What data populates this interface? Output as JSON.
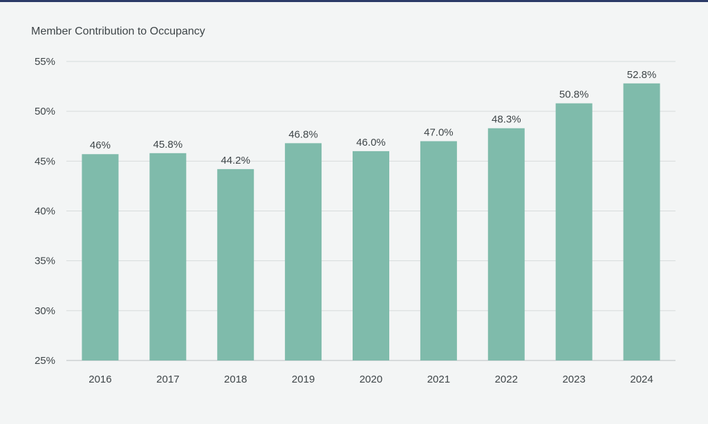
{
  "chart_data": {
    "type": "bar",
    "title": "Member Contribution to Occupancy",
    "xlabel": "",
    "ylabel": "",
    "categories": [
      "2016",
      "2017",
      "2018",
      "2019",
      "2020",
      "2021",
      "2022",
      "2023",
      "2024"
    ],
    "values": [
      45.7,
      45.8,
      44.2,
      46.8,
      46.0,
      47.0,
      48.3,
      50.8,
      52.8
    ],
    "data_labels": [
      "46%",
      "45.8%",
      "44.2%",
      "46.8%",
      "46.0%",
      "47.0%",
      "48.3%",
      "50.8%",
      "52.8%"
    ],
    "ylim": [
      25,
      55
    ],
    "yticks": [
      25,
      30,
      35,
      40,
      45,
      50,
      55
    ],
    "ytick_labels": [
      "25%",
      "30%",
      "35%",
      "40%",
      "45%",
      "50%",
      "55%"
    ],
    "grid": true,
    "legend": "none",
    "colors": {
      "bar": "#7fbbab",
      "grid": "#d6dadb",
      "text": "#3e4548",
      "accent_bar": "#2b3a67"
    }
  }
}
